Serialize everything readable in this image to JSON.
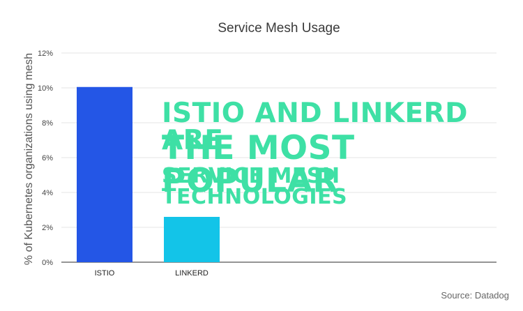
{
  "chart_data": {
    "type": "bar",
    "title": "Service Mesh Usage",
    "ylabel": "% of Kubernetes organizations using mesh",
    "xlabel": "",
    "categories": [
      "ISTIO",
      "LINKERD"
    ],
    "values": [
      10.05,
      2.6
    ],
    "colors": [
      "#2456e6",
      "#13c4e8"
    ],
    "ylim": [
      0,
      12
    ],
    "yticks": [
      0,
      2,
      4,
      6,
      8,
      10,
      12
    ],
    "ytick_labels": [
      "0%",
      "2%",
      "4%",
      "6%",
      "8%",
      "10%",
      "12%"
    ],
    "grid": true
  },
  "headline": {
    "line1": "ISTIO AND LINKERD ARE",
    "line2": "THE MOST POPULAR",
    "line3": "SERVICE MESH TECHNOLOGIES",
    "color": "#3ee0a5"
  },
  "source": "Source: Datadog"
}
